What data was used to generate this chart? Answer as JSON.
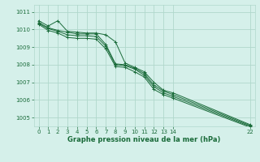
{
  "title": "Graphe pression niveau de la mer (hPa)",
  "bg_color": "#d5f0ea",
  "grid_color": "#b0d8cc",
  "line_color": "#1a6b3a",
  "xlim": [
    -0.5,
    22.5
  ],
  "ylim": [
    1004.5,
    1011.4
  ],
  "xticks": [
    0,
    1,
    2,
    3,
    4,
    5,
    6,
    7,
    8,
    9,
    10,
    11,
    12,
    13,
    14,
    22
  ],
  "yticks": [
    1005,
    1006,
    1007,
    1008,
    1009,
    1010,
    1011
  ],
  "series": [
    [
      1010.5,
      1010.2,
      1010.5,
      1009.9,
      1009.85,
      1009.8,
      1009.8,
      1009.7,
      1009.3,
      1008.1,
      1007.85,
      1007.6,
      1007.0,
      1006.55,
      1006.4,
      1004.6
    ],
    [
      1010.4,
      1010.1,
      1009.95,
      1009.85,
      1009.75,
      1009.75,
      1009.75,
      1009.15,
      1008.05,
      1008.0,
      1007.8,
      1007.5,
      1006.85,
      1006.5,
      1006.3,
      1004.55
    ],
    [
      1010.35,
      1010.05,
      1009.9,
      1009.7,
      1009.65,
      1009.65,
      1009.6,
      1009.05,
      1008.0,
      1007.95,
      1007.75,
      1007.4,
      1006.75,
      1006.4,
      1006.2,
      1004.5
    ],
    [
      1010.3,
      1009.95,
      1009.8,
      1009.55,
      1009.5,
      1009.5,
      1009.45,
      1008.9,
      1007.9,
      1007.85,
      1007.6,
      1007.3,
      1006.6,
      1006.3,
      1006.1,
      1004.45
    ]
  ],
  "x_positions": [
    0,
    1,
    2,
    3,
    4,
    5,
    6,
    7,
    8,
    9,
    10,
    11,
    12,
    13,
    14,
    22
  ],
  "tick_fontsize": 5.0,
  "xlabel_fontsize": 6.0,
  "linewidth": 0.7,
  "markersize": 2.5
}
